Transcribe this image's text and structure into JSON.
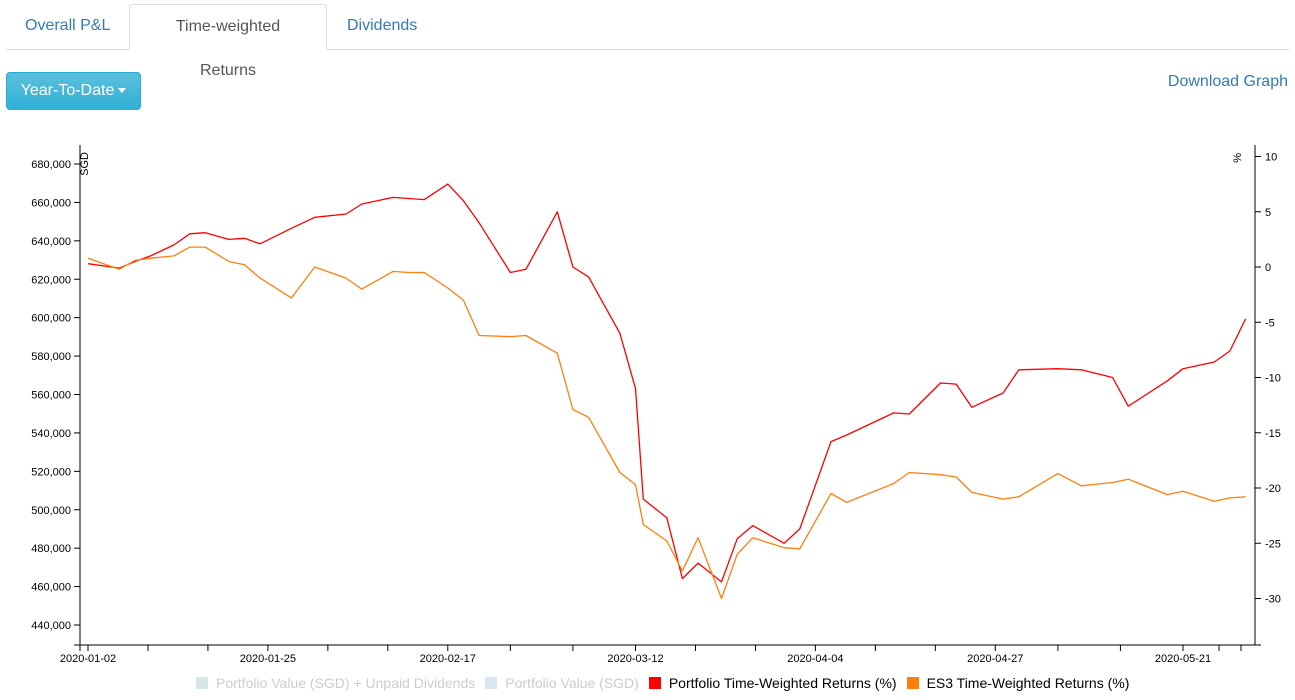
{
  "tabs": [
    {
      "label": "Overall P&L",
      "active": false
    },
    {
      "label": "Time-weighted Returns",
      "active": true
    },
    {
      "label": "Dividends",
      "active": false
    }
  ],
  "toolbar": {
    "range_button": "Year-To-Date",
    "download_link": "Download Graph"
  },
  "colors": {
    "portfolio": "#ff0000",
    "es3": "#ff7f0e",
    "legend_off_1": "#d6e7e7",
    "legend_off_2": "#d9e6f2",
    "link": "#337ab7",
    "button": "#31b0d5"
  },
  "legend": [
    {
      "label": "Portfolio Value (SGD) + Unpaid Dividends",
      "color": "#d6e7e7",
      "enabled": false
    },
    {
      "label": "Portfolio Value (SGD)",
      "color": "#d9e6f2",
      "enabled": false
    },
    {
      "label": "Portfolio Time-Weighted Returns (%)",
      "color": "#ff0000",
      "enabled": true
    },
    {
      "label": "ES3 Time-Weighted Returns (%)",
      "color": "#ff7f0e",
      "enabled": true
    }
  ],
  "chart_data": {
    "type": "line",
    "title": "",
    "xlabel": "",
    "ylabel_left": "SGD",
    "ylabel_right": "%",
    "x_tick_labels": [
      "2020-01-02",
      "2020-01-25",
      "2020-02-17",
      "2020-03-12",
      "2020-04-04",
      "2020-04-27",
      "2020-05-21"
    ],
    "y_left_ticks": [
      "440,000",
      "460,000",
      "480,000",
      "500,000",
      "520,000",
      "540,000",
      "560,000",
      "580,000",
      "600,000",
      "620,000",
      "640,000",
      "660,000",
      "680,000"
    ],
    "y_right_ticks": [
      "10",
      "5",
      "0",
      "-5",
      "-10",
      "-15",
      "-20",
      "-25",
      "-30"
    ],
    "ylim_left": [
      430000,
      690000
    ],
    "ylim_right": [
      -34,
      11
    ],
    "grid": false,
    "legend_position": "bottom",
    "x": [
      "2020-01-02",
      "2020-01-06",
      "2020-01-08",
      "2020-01-10",
      "2020-01-13",
      "2020-01-15",
      "2020-01-17",
      "2020-01-20",
      "2020-01-22",
      "2020-01-24",
      "2020-01-28",
      "2020-01-31",
      "2020-02-04",
      "2020-02-06",
      "2020-02-10",
      "2020-02-12",
      "2020-02-14",
      "2020-02-17",
      "2020-02-19",
      "2020-02-21",
      "2020-02-25",
      "2020-02-27",
      "2020-03-02",
      "2020-03-04",
      "2020-03-06",
      "2020-03-10",
      "2020-03-12",
      "2020-03-13",
      "2020-03-16",
      "2020-03-18",
      "2020-03-20",
      "2020-03-23",
      "2020-03-25",
      "2020-03-27",
      "2020-03-31",
      "2020-04-02",
      "2020-04-06",
      "2020-04-08",
      "2020-04-14",
      "2020-04-16",
      "2020-04-20",
      "2020-04-22",
      "2020-04-24",
      "2020-04-28",
      "2020-04-30",
      "2020-05-05",
      "2020-05-08",
      "2020-05-12",
      "2020-05-14",
      "2020-05-19",
      "2020-05-21",
      "2020-05-25",
      "2020-05-27",
      "2020-05-29"
    ],
    "series": [
      {
        "name": "Portfolio Time-Weighted Returns (%)",
        "color": "#ff0000",
        "values": [
          0.3,
          -0.1,
          0.5,
          1.0,
          2.0,
          3.0,
          3.1,
          2.5,
          2.6,
          2.1,
          3.5,
          4.5,
          4.8,
          5.7,
          6.3,
          6.2,
          6.1,
          7.5,
          6.0,
          4.0,
          -0.5,
          -0.2,
          5.0,
          0.0,
          -0.9,
          -6.0,
          -11.0,
          -21.0,
          -22.7,
          -28.2,
          -26.8,
          -28.5,
          -24.6,
          -23.4,
          -25.0,
          -23.7,
          -15.8,
          -15.2,
          -13.2,
          -13.3,
          -10.5,
          -10.6,
          -12.7,
          -11.4,
          -9.3,
          -9.2,
          -9.3,
          -10.0,
          -12.6,
          -10.3,
          -9.2,
          -8.6,
          -7.6,
          -4.7
        ]
      },
      {
        "name": "ES3 Time-Weighted Returns (%)",
        "color": "#ff7f0e",
        "values": [
          0.8,
          -0.2,
          0.6,
          0.8,
          1.0,
          1.8,
          1.8,
          0.5,
          0.2,
          -1.0,
          -2.8,
          0.0,
          -1.0,
          -2.0,
          -0.4,
          -0.5,
          -0.5,
          -1.9,
          -3.0,
          -6.2,
          -6.3,
          -6.2,
          -7.8,
          -12.9,
          -13.6,
          -18.6,
          -19.7,
          -23.3,
          -24.8,
          -27.5,
          -24.5,
          -30.0,
          -26.0,
          -24.5,
          -25.4,
          -25.5,
          -20.5,
          -21.3,
          -19.6,
          -18.6,
          -18.8,
          -19.0,
          -20.4,
          -21.0,
          -20.8,
          -18.7,
          -19.8,
          -19.5,
          -19.2,
          -20.6,
          -20.3,
          -21.2,
          -20.9,
          -20.8
        ]
      }
    ]
  }
}
